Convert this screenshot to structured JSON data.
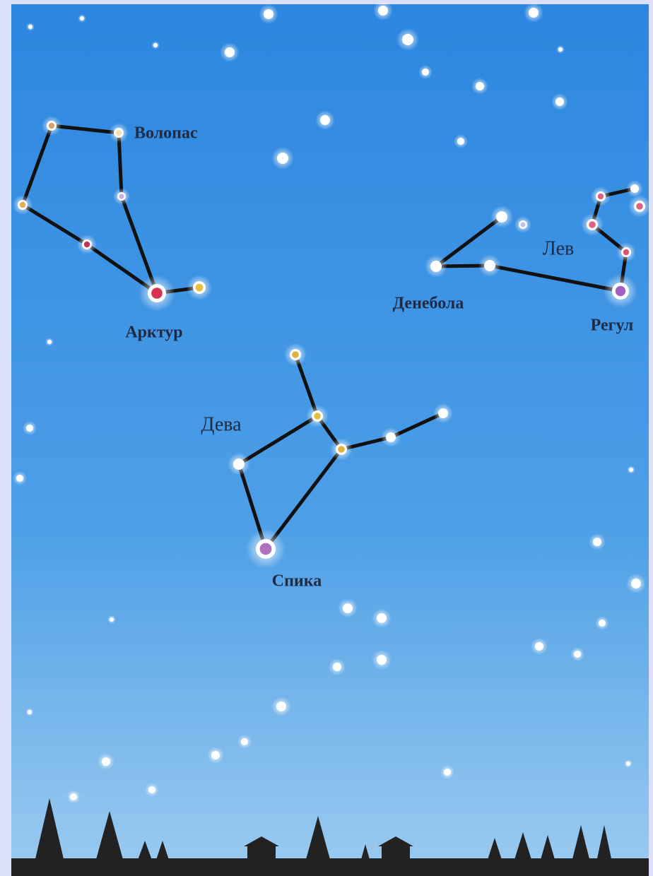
{
  "constellations": [
    {
      "name": "Волопас",
      "stars": [
        "Арктур"
      ]
    },
    {
      "name": "Лев",
      "stars": [
        "Денебола",
        "Регул"
      ]
    },
    {
      "name": "Дева",
      "stars": [
        "Спика"
      ]
    }
  ]
}
